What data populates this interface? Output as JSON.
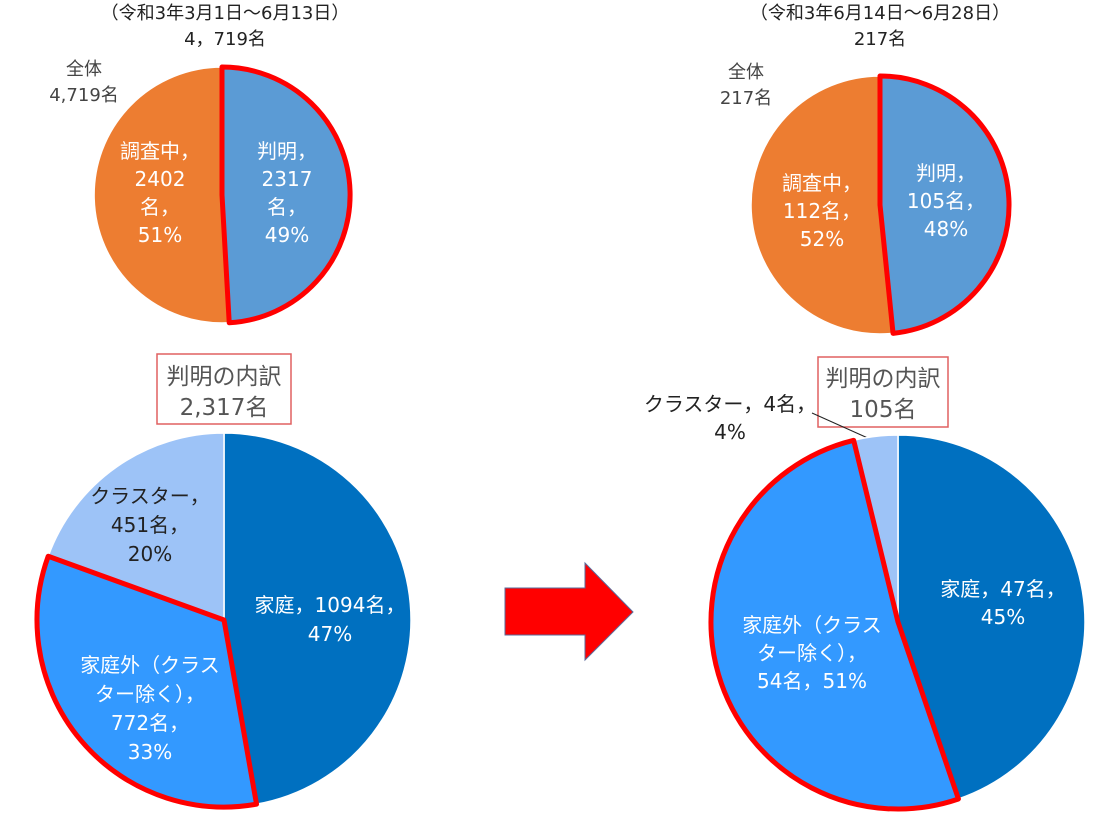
{
  "colors": {
    "orange": "#ED7D31",
    "steel_blue": "#5B9BD5",
    "dark_blue": "#0070C0",
    "mid_blue": "#3399FF",
    "light_blue": "#9DC3F7",
    "highlight_red": "#FF0000",
    "box_border": "#E06060"
  },
  "arrow": {
    "icon": "right-arrow-icon",
    "color": "#FF0000"
  },
  "chart_data": [
    {
      "type": "pie",
      "period": "（令和3年3月1日～6月13日）",
      "total": "4，719名",
      "side_label": [
        "全体",
        "4,719名"
      ],
      "slices": [
        {
          "key": "hanmei",
          "value": 2317,
          "percent": 49,
          "color": "#5B9BD5",
          "highlight": true,
          "label": [
            "判明，",
            "2317",
            "名，",
            "49%"
          ]
        },
        {
          "key": "chousachuu",
          "value": 2402,
          "percent": 51,
          "color": "#ED7D31",
          "highlight": false,
          "label": [
            "調査中，",
            "2402",
            "名，",
            "51%"
          ]
        }
      ]
    },
    {
      "type": "pie",
      "period": "（令和3年6月14日～6月28日）",
      "total": "217名",
      "side_label": [
        "全体",
        "217名"
      ],
      "slices": [
        {
          "key": "hanmei",
          "value": 105,
          "percent": 48,
          "color": "#5B9BD5",
          "highlight": true,
          "label": [
            "判明，",
            "105名，",
            "48%"
          ]
        },
        {
          "key": "chousachuu",
          "value": 112,
          "percent": 52,
          "color": "#ED7D31",
          "highlight": false,
          "label": [
            "調査中，",
            "112名，",
            "52%"
          ]
        }
      ]
    },
    {
      "type": "pie",
      "box_title": "判明の内訳",
      "box_total": "2,317名",
      "slices": [
        {
          "key": "katei",
          "value": 1094,
          "percent": 47,
          "color": "#0070C0",
          "highlight": false,
          "label": [
            "家庭，1094名，",
            "47%"
          ]
        },
        {
          "key": "kateigai",
          "value": 772,
          "percent": 33,
          "color": "#3399FF",
          "highlight": true,
          "label": [
            "家庭外（クラス",
            "ター除く），",
            "772名，",
            "33%"
          ]
        },
        {
          "key": "cluster",
          "value": 451,
          "percent": 20,
          "color": "#9DC3F7",
          "highlight": false,
          "label": [
            "クラスター，",
            "451名，",
            "20%"
          ]
        }
      ]
    },
    {
      "type": "pie",
      "box_title": "判明の内訳",
      "box_total": "105名",
      "slices": [
        {
          "key": "katei",
          "value": 47,
          "percent": 45,
          "color": "#0070C0",
          "highlight": false,
          "label": [
            "家庭，47名，",
            "45%"
          ]
        },
        {
          "key": "kateigai",
          "value": 54,
          "percent": 51,
          "color": "#3399FF",
          "highlight": true,
          "label": [
            "家庭外（クラス",
            "ター除く），",
            "54名，51%"
          ]
        },
        {
          "key": "cluster",
          "value": 4,
          "percent": 4,
          "color": "#9DC3F7",
          "highlight": false,
          "label": [
            "クラスター，4名，",
            "4%"
          ]
        }
      ]
    }
  ]
}
